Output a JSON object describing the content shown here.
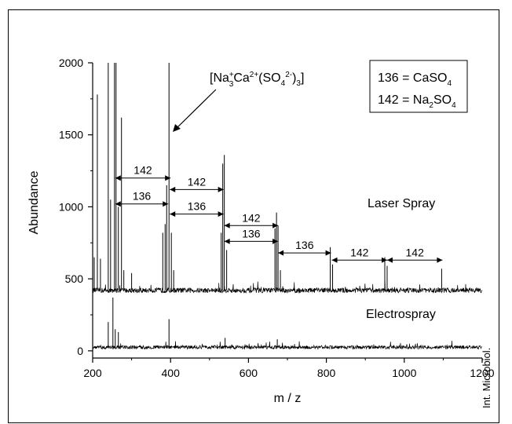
{
  "chart_data": {
    "type": "line",
    "xlabel": "m / z",
    "ylabel": "Abundance",
    "xlim": [
      200,
      1200
    ],
    "ylim": [
      -50,
      2000
    ],
    "x_ticks": [
      200,
      400,
      600,
      800,
      1000,
      1200
    ],
    "y_ticks": [
      0,
      500,
      1000,
      1500,
      2000
    ],
    "x_tick_labels": [
      "200",
      "400",
      "600",
      "800",
      "1000",
      "1200"
    ],
    "y_tick_labels": [
      "0",
      "500",
      "1000",
      "1500",
      "2000"
    ],
    "grid": false,
    "series": [
      {
        "name": "Laser Spray",
        "baseline": 420,
        "noise": 35,
        "peaks": [
          {
            "x": 200,
            "y": 760
          },
          {
            "x": 204,
            "y": 650
          },
          {
            "x": 212,
            "y": 1780
          },
          {
            "x": 220,
            "y": 640
          },
          {
            "x": 240,
            "y": 2000
          },
          {
            "x": 246,
            "y": 1050
          },
          {
            "x": 256,
            "y": 2000
          },
          {
            "x": 260,
            "y": 2000
          },
          {
            "x": 266,
            "y": 1000
          },
          {
            "x": 274,
            "y": 1620
          },
          {
            "x": 280,
            "y": 560
          },
          {
            "x": 300,
            "y": 540
          },
          {
            "x": 380,
            "y": 820
          },
          {
            "x": 386,
            "y": 880
          },
          {
            "x": 390,
            "y": 1150
          },
          {
            "x": 396,
            "y": 2000
          },
          {
            "x": 402,
            "y": 820
          },
          {
            "x": 408,
            "y": 560
          },
          {
            "x": 530,
            "y": 820
          },
          {
            "x": 534,
            "y": 1300
          },
          {
            "x": 538,
            "y": 1360
          },
          {
            "x": 544,
            "y": 700
          },
          {
            "x": 668,
            "y": 850
          },
          {
            "x": 672,
            "y": 960
          },
          {
            "x": 676,
            "y": 870
          },
          {
            "x": 682,
            "y": 560
          },
          {
            "x": 810,
            "y": 720
          },
          {
            "x": 816,
            "y": 600
          },
          {
            "x": 950,
            "y": 650
          },
          {
            "x": 956,
            "y": 590
          },
          {
            "x": 1096,
            "y": 570
          }
        ]
      },
      {
        "name": "Electrospray",
        "baseline": 25,
        "noise": 25,
        "peaks": [
          {
            "x": 240,
            "y": 200
          },
          {
            "x": 252,
            "y": 370
          },
          {
            "x": 258,
            "y": 150
          },
          {
            "x": 266,
            "y": 130
          },
          {
            "x": 396,
            "y": 220
          },
          {
            "x": 540,
            "y": 90
          },
          {
            "x": 674,
            "y": 80
          }
        ]
      }
    ],
    "annotations": {
      "complex_label": "[Na+3Ca2+(SO42-)3]",
      "legend_line1": "136 = CaSO4",
      "legend_line2": "142 = Na2SO4",
      "spacings": [
        {
          "label": "142",
          "x1": 258,
          "x2": 400,
          "y": 1200
        },
        {
          "label": "136",
          "x1": 258,
          "x2": 394,
          "y": 1020
        },
        {
          "label": "142",
          "x1": 398,
          "x2": 536,
          "y": 1120
        },
        {
          "label": "136",
          "x1": 398,
          "x2": 536,
          "y": 950
        },
        {
          "label": "142",
          "x1": 538,
          "x2": 676,
          "y": 870
        },
        {
          "label": "136",
          "x1": 538,
          "x2": 676,
          "y": 760
        },
        {
          "label": "136",
          "x1": 676,
          "x2": 812,
          "y": 680
        },
        {
          "label": "142",
          "x1": 814,
          "x2": 956,
          "y": 630
        },
        {
          "label": "142",
          "x1": 956,
          "x2": 1098,
          "y": 630
        }
      ]
    },
    "side_credit": "Int. Microbiol."
  }
}
